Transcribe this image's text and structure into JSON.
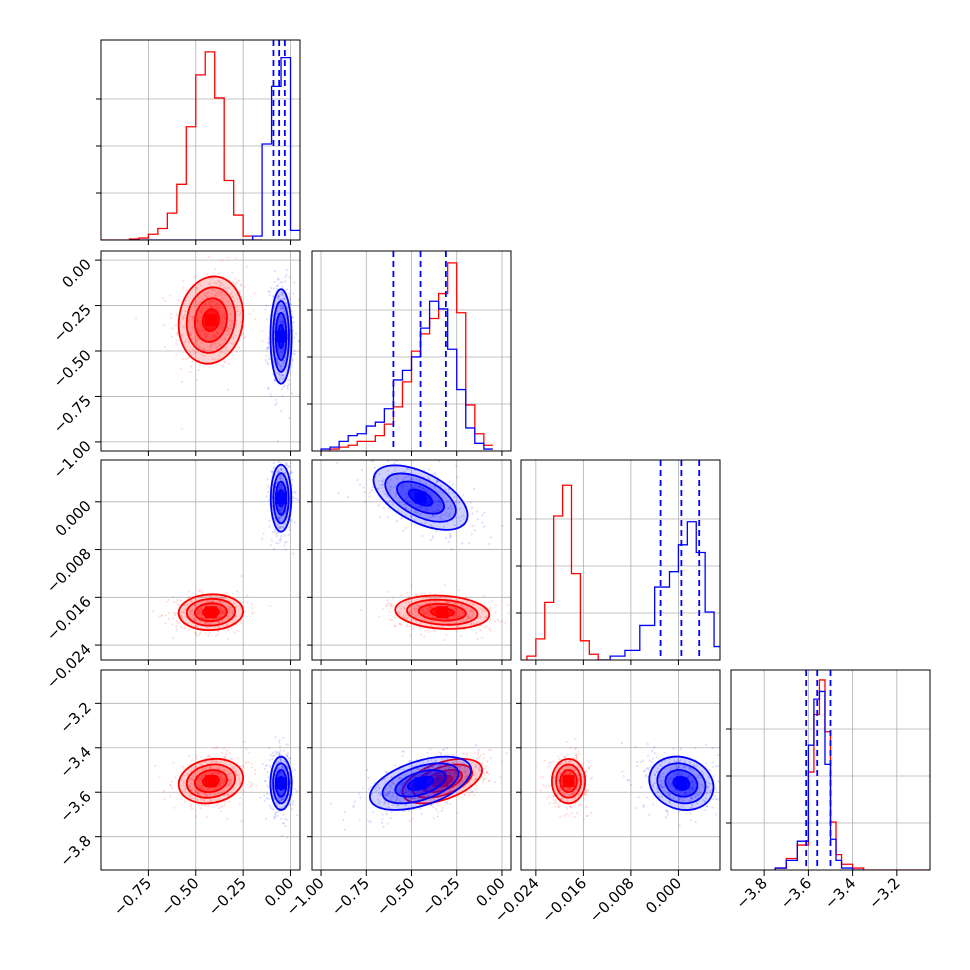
{
  "chart_data": {
    "type": "corner",
    "grid": true,
    "colors": {
      "series_a": "#0000ff",
      "series_b": "#ff0000",
      "grid": "#b0b0b0",
      "quantile_line": "#0000ff"
    },
    "series": [
      {
        "color": "#0000ff"
      },
      {
        "color": "#ff0000"
      }
    ],
    "params": [
      {
        "range": [
          -1.0,
          0.05
        ],
        "ticks": [
          -0.75,
          -0.5,
          -0.25,
          0.0
        ],
        "tick_labels": [
          "−0.75",
          "−0.50",
          "−0.25",
          "0.00"
        ]
      },
      {
        "range": [
          -1.05,
          0.05
        ],
        "ticks": [
          -1.0,
          -0.75,
          -0.5,
          -0.25,
          0.0
        ],
        "tick_labels": [
          "−1.00",
          "−0.75",
          "−0.50",
          "−0.25",
          "0.00"
        ]
      },
      {
        "range": [
          -0.0265,
          0.007
        ],
        "ticks": [
          -0.024,
          -0.016,
          -0.008,
          0.0
        ],
        "tick_labels": [
          "−0.024",
          "−0.016",
          "−0.008",
          "0.000"
        ]
      },
      {
        "range": [
          -3.95,
          -3.05
        ],
        "ticks": [
          -3.8,
          -3.6,
          -3.4,
          -3.2
        ],
        "tick_labels": [
          "−3.8",
          "−3.6",
          "−3.4",
          "−3.2"
        ]
      }
    ],
    "marginals": [
      {
        "quantiles": [
          -0.09,
          -0.06,
          -0.03
        ],
        "blue": {
          "edges": [
            -0.85,
            -0.2,
            -0.15,
            -0.1,
            -0.05,
            0.0,
            0.05
          ],
          "heights": [
            0.0,
            0.02,
            0.5,
            0.8,
            0.95,
            0.05
          ]
        },
        "red": {
          "edges": [
            -1.0,
            -0.85,
            -0.8,
            -0.75,
            -0.7,
            -0.65,
            -0.6,
            -0.55,
            -0.5,
            -0.45,
            -0.4,
            -0.35,
            -0.3,
            -0.25,
            -0.2,
            -0.15
          ],
          "heights": [
            0.0,
            0.005,
            0.01,
            0.03,
            0.06,
            0.14,
            0.29,
            0.59,
            0.86,
            0.98,
            0.74,
            0.31,
            0.13,
            0.02,
            0.0
          ]
        }
      },
      {
        "quantiles": [
          -0.6,
          -0.45,
          -0.31
        ],
        "blue": {
          "edges": [
            -1.0,
            -0.95,
            -0.9,
            -0.85,
            -0.8,
            -0.75,
            -0.7,
            -0.65,
            -0.6,
            -0.55,
            -0.5,
            -0.45,
            -0.4,
            -0.35,
            -0.3,
            -0.25,
            -0.2,
            -0.15,
            -0.1,
            -0.05
          ],
          "heights": [
            0.01,
            0.02,
            0.05,
            0.08,
            0.09,
            0.13,
            0.15,
            0.22,
            0.37,
            0.42,
            0.49,
            0.64,
            0.78,
            0.74,
            0.53,
            0.32,
            0.12,
            0.04,
            0.01
          ]
        },
        "red": {
          "edges": [
            -1.0,
            -0.95,
            -0.9,
            -0.85,
            -0.8,
            -0.75,
            -0.7,
            -0.65,
            -0.6,
            -0.55,
            -0.5,
            -0.45,
            -0.4,
            -0.35,
            -0.3,
            -0.25,
            -0.2,
            -0.15,
            -0.1,
            -0.05
          ],
          "heights": [
            0.0,
            0.01,
            0.02,
            0.03,
            0.05,
            0.05,
            0.08,
            0.14,
            0.23,
            0.36,
            0.52,
            0.61,
            0.69,
            0.82,
            0.98,
            0.72,
            0.24,
            0.09,
            0.03
          ]
        }
      },
      {
        "quantiles": [
          -0.003,
          0.0005,
          0.0035
        ],
        "blue": {
          "edges": [
            -0.014,
            -0.0115,
            -0.009,
            -0.0065,
            -0.004,
            -0.0015,
            0.0,
            0.0015,
            0.003,
            0.0045,
            0.006,
            0.008
          ],
          "heights": [
            0.0,
            0.02,
            0.05,
            0.18,
            0.38,
            0.46,
            0.6,
            0.72,
            0.56,
            0.25,
            0.07
          ]
        },
        "red": {
          "edges": [
            -0.0255,
            -0.024,
            -0.0225,
            -0.021,
            -0.0195,
            -0.018,
            -0.0165,
            -0.015,
            -0.0135,
            -0.012
          ],
          "heights": [
            0.02,
            0.11,
            0.3,
            0.75,
            0.91,
            0.45,
            0.1,
            0.03,
            0.0
          ]
        }
      },
      {
        "quantiles": [
          -3.61,
          -3.56,
          -3.5
        ],
        "blue": {
          "edges": [
            -3.75,
            -3.7,
            -3.65,
            -3.6,
            -3.575,
            -3.55,
            -3.525,
            -3.5,
            -3.475,
            -3.45,
            -3.4,
            -3.35
          ],
          "heights": [
            0.01,
            0.05,
            0.15,
            0.65,
            0.89,
            0.93,
            0.55,
            0.16,
            0.05,
            0.01,
            0.0
          ]
        },
        "red": {
          "edges": [
            -3.75,
            -3.7,
            -3.65,
            -3.6,
            -3.575,
            -3.55,
            -3.525,
            -3.5,
            -3.475,
            -3.45,
            -3.4,
            -3.35,
            -3.05
          ],
          "heights": [
            0.01,
            0.06,
            0.13,
            0.51,
            0.81,
            0.99,
            0.72,
            0.25,
            0.08,
            0.03,
            0.01,
            0.0
          ]
        }
      }
    ],
    "joints": [
      {
        "row": 1,
        "col": 0,
        "blue": {
          "mean": [
            -0.05,
            -0.42
          ],
          "sd": [
            0.028,
            0.13
          ],
          "rho": 0
        },
        "red": {
          "mean": [
            -0.42,
            -0.33
          ],
          "sd": [
            0.085,
            0.12
          ],
          "rho": 0.1
        }
      },
      {
        "row": 2,
        "col": 0,
        "blue": {
          "mean": [
            -0.05,
            0.0006
          ],
          "sd": [
            0.027,
            0.0028
          ],
          "rho": 0
        },
        "red": {
          "mean": [
            -0.42,
            -0.0185
          ],
          "sd": [
            0.085,
            0.0015
          ],
          "rho": 0.05
        }
      },
      {
        "row": 2,
        "col": 1,
        "blue": {
          "mean": [
            -0.45,
            0.0007
          ],
          "sd": [
            0.13,
            0.0027
          ],
          "rho": -0.55
        },
        "red": {
          "mean": [
            -0.33,
            -0.0185
          ],
          "sd": [
            0.13,
            0.0014
          ],
          "rho": -0.15
        }
      },
      {
        "row": 3,
        "col": 0,
        "blue": {
          "mean": [
            -0.05,
            -3.56
          ],
          "sd": [
            0.028,
            0.06
          ],
          "rho": 0
        },
        "red": {
          "mean": [
            -0.42,
            -3.55
          ],
          "sd": [
            0.085,
            0.05
          ],
          "rho": 0.15
        }
      },
      {
        "row": 3,
        "col": 1,
        "blue": {
          "mean": [
            -0.45,
            -3.56
          ],
          "sd": [
            0.14,
            0.06
          ],
          "rho": 0.5
        },
        "red": {
          "mean": [
            -0.33,
            -3.55
          ],
          "sd": [
            0.11,
            0.05
          ],
          "rho": 0.5
        }
      },
      {
        "row": 3,
        "col": 2,
        "blue": {
          "mean": [
            0.0005,
            -3.56
          ],
          "sd": [
            0.0027,
            0.06
          ],
          "rho": -0.15
        },
        "red": {
          "mean": [
            -0.0185,
            -3.55
          ],
          "sd": [
            0.0014,
            0.05
          ],
          "rho": 0.0
        }
      }
    ]
  }
}
